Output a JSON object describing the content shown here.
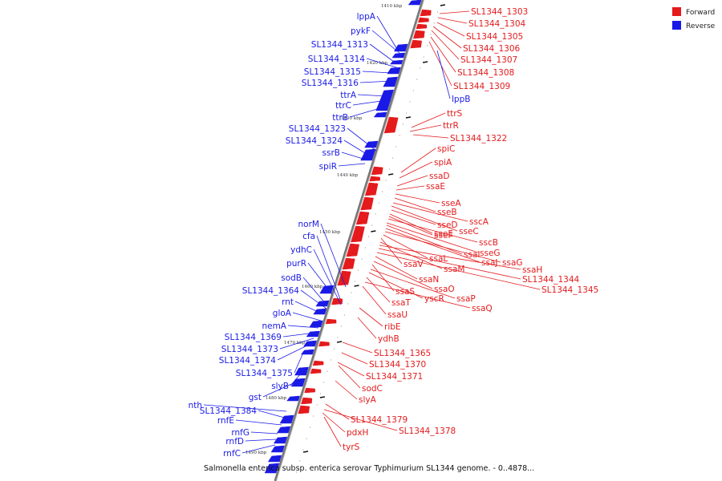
{
  "colors": {
    "forward": "#e41a1c",
    "reverse": "#1a1ae6",
    "axis": "#777777"
  },
  "legend": [
    {
      "label": "Forward",
      "color": "#e41a1c"
    },
    {
      "label": "Reverse",
      "color": "#1a1ae6"
    }
  ],
  "caption": "Salmonella enterica subsp. enterica serovar Typhimurium SL1344 genome. - 0..4878...",
  "ticks": [
    "1410 kbp",
    "1420 kbp",
    "1430 kbp",
    "1440 kbp",
    "1450 kbp",
    "1460 kbp",
    "1470 kbp",
    "1480 kbp",
    "1490 kbp"
  ],
  "reverse_genes": [
    "lppA",
    "pykF",
    "SL1344_1313",
    "SL1344_1314",
    "SL1344_1315",
    "SL1344_1316",
    "ttrA",
    "ttrC",
    "ttrB",
    "SL1344_1323",
    "SL1344_1324",
    "ssrB",
    "spiR",
    "norM",
    "cfa",
    "ydhC",
    "purR",
    "sodB",
    "SL1344_1364",
    "rnt",
    "gloA",
    "nemA",
    "SL1344_1369",
    "SL1344_1373",
    "SL1344_1374",
    "SL1344_1375",
    "slyB",
    "gst",
    "nth",
    "SL1344_1384",
    "rnfE",
    "rnfG",
    "rnfD",
    "rnfC"
  ],
  "forward_genes": [
    "SL1344_1303",
    "SL1344_1304",
    "SL1344_1305",
    "SL1344_1306",
    "SL1344_1307",
    "SL1344_1308",
    "SL1344_1309",
    "lppB",
    "ttrS",
    "ttrR",
    "SL1344_1322",
    "spiC",
    "spiA",
    "ssaD",
    "ssaE",
    "sseA",
    "sseB",
    "sscA",
    "sseC",
    "sseD",
    "sseE",
    "sseF",
    "sscB",
    "sseG",
    "ssaI",
    "ssaJ",
    "ssaG",
    "ssaL",
    "ssaV",
    "ssaM",
    "ssaH",
    "SL1344_1344",
    "SL1344_1345",
    "ssaN",
    "ssaO",
    "ssaS",
    "ssaP",
    "yscR",
    "ssaT",
    "ssaQ",
    "ssaU",
    "ribE",
    "ydhB",
    "SL1344_1365",
    "SL1344_1370",
    "SL1344_1371",
    "sodC",
    "slyA",
    "SL1344_1379",
    "SL1344_1378",
    "pdxH",
    "tyrS"
  ]
}
